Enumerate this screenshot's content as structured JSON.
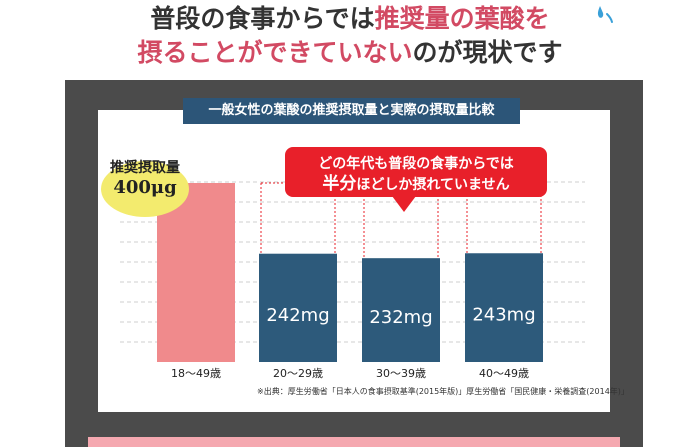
{
  "headline": {
    "line1_a": "普段の食事からでは",
    "line1_b": "推奨量の葉酸を",
    "line2_a": "摂ることができていない",
    "line2_b": "のが現状です"
  },
  "panel": {
    "title": "一般女性の葉酸の推奨摂取量と実際の摂取量比較",
    "callout": {
      "line1": "どの年代も普段の食事からでは",
      "line2_em": "半分",
      "line2_rest": "ほどしか摂れていません"
    },
    "recommended": {
      "label": "推奨摂取量",
      "value": "400μg"
    },
    "source": "※出典：厚生労働省「日本人の食事摂取基準(2015年版)」厚生労働省「国民健康・栄養調査(2014年)」"
  },
  "chart_data": {
    "type": "bar",
    "categories": [
      "18〜49歳",
      "20〜29歳",
      "30〜39歳",
      "40〜49歳"
    ],
    "values": [
      400,
      242,
      232,
      243
    ],
    "value_labels": [
      "",
      "242mg",
      "232mg",
      "243mg"
    ],
    "colors": [
      "#f08a8c",
      "#2d5a7b",
      "#2d5a7b",
      "#2d5a7b"
    ],
    "ylim": [
      0,
      400
    ],
    "grid": true
  },
  "colors": {
    "accent": "#d24a63",
    "callout": "#e8202a",
    "bar_primary": "#2d5a7b",
    "bar_recommended": "#f08a8c",
    "panel": "#4b4b4b"
  },
  "icons": {
    "sweat": "sweat-drop-icon"
  }
}
